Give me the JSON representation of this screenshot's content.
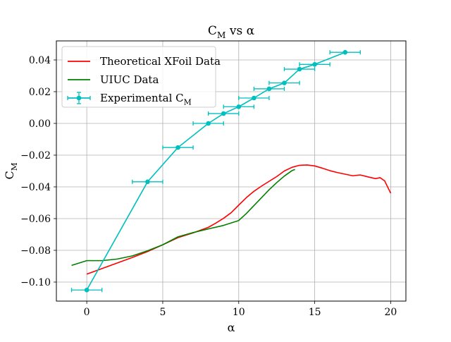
{
  "chart_data": {
    "type": "line",
    "title": "C_M vs α",
    "xlabel": "α",
    "ylabel": "C_M",
    "xlim": [
      -2.0,
      21.0
    ],
    "ylim": [
      -0.112,
      0.052
    ],
    "xticks": [
      0,
      5,
      10,
      15,
      20
    ],
    "yticks": [
      -0.1,
      -0.08,
      -0.06,
      -0.04,
      -0.02,
      0.0,
      0.02,
      0.04
    ],
    "xtick_labels": [
      "0",
      "5",
      "10",
      "15",
      "20"
    ],
    "ytick_labels": [
      "−0.10",
      "−0.08",
      "−0.06",
      "−0.04",
      "−0.02",
      "0.00",
      "0.02",
      "0.04"
    ],
    "grid": true,
    "legend_position": "top-left",
    "series": [
      {
        "name": "Theoretical XFoil Data",
        "color": "#ff0000",
        "kind": "line",
        "x": [
          0,
          1,
          2,
          3,
          4,
          5,
          6,
          7,
          8,
          8.5,
          9,
          9.5,
          10,
          10.5,
          11,
          11.5,
          12,
          12.5,
          13,
          13.5,
          14,
          14.5,
          15,
          15.5,
          16,
          16.5,
          17,
          17.5,
          18,
          18.5,
          19,
          19.3,
          19.6,
          20
        ],
        "y": [
          -0.095,
          -0.0915,
          -0.088,
          -0.0845,
          -0.0808,
          -0.0765,
          -0.072,
          -0.069,
          -0.0655,
          -0.0628,
          -0.0598,
          -0.0563,
          -0.0515,
          -0.0468,
          -0.0428,
          -0.0395,
          -0.0365,
          -0.0335,
          -0.03,
          -0.0277,
          -0.0264,
          -0.0262,
          -0.0268,
          -0.0282,
          -0.0298,
          -0.031,
          -0.032,
          -0.033,
          -0.0325,
          -0.0337,
          -0.0348,
          -0.0342,
          -0.0362,
          -0.044
        ]
      },
      {
        "name": "UIUC Data",
        "color": "#008000",
        "kind": "line",
        "x": [
          -1,
          0,
          1,
          2,
          3,
          4,
          5,
          6,
          7,
          8,
          9,
          10,
          10.5,
          11,
          11.5,
          12,
          12.5,
          13,
          13.5,
          13.7
        ],
        "y": [
          -0.0895,
          -0.0865,
          -0.0865,
          -0.0855,
          -0.0835,
          -0.0803,
          -0.0765,
          -0.0715,
          -0.0688,
          -0.0665,
          -0.0643,
          -0.0612,
          -0.0568,
          -0.0518,
          -0.0468,
          -0.0418,
          -0.0373,
          -0.0332,
          -0.0298,
          -0.029
        ]
      },
      {
        "name": "Experimental C_M",
        "color": "#00bfbf",
        "kind": "errorbar",
        "x": [
          0,
          4,
          6,
          8,
          9,
          10,
          11,
          12,
          13,
          14,
          15,
          17
        ],
        "y": [
          -0.105,
          -0.0368,
          -0.0152,
          0.0,
          0.0062,
          0.0105,
          0.016,
          0.0218,
          0.0255,
          0.0342,
          0.0372,
          0.0448
        ],
        "xerr": 1.0
      }
    ]
  }
}
